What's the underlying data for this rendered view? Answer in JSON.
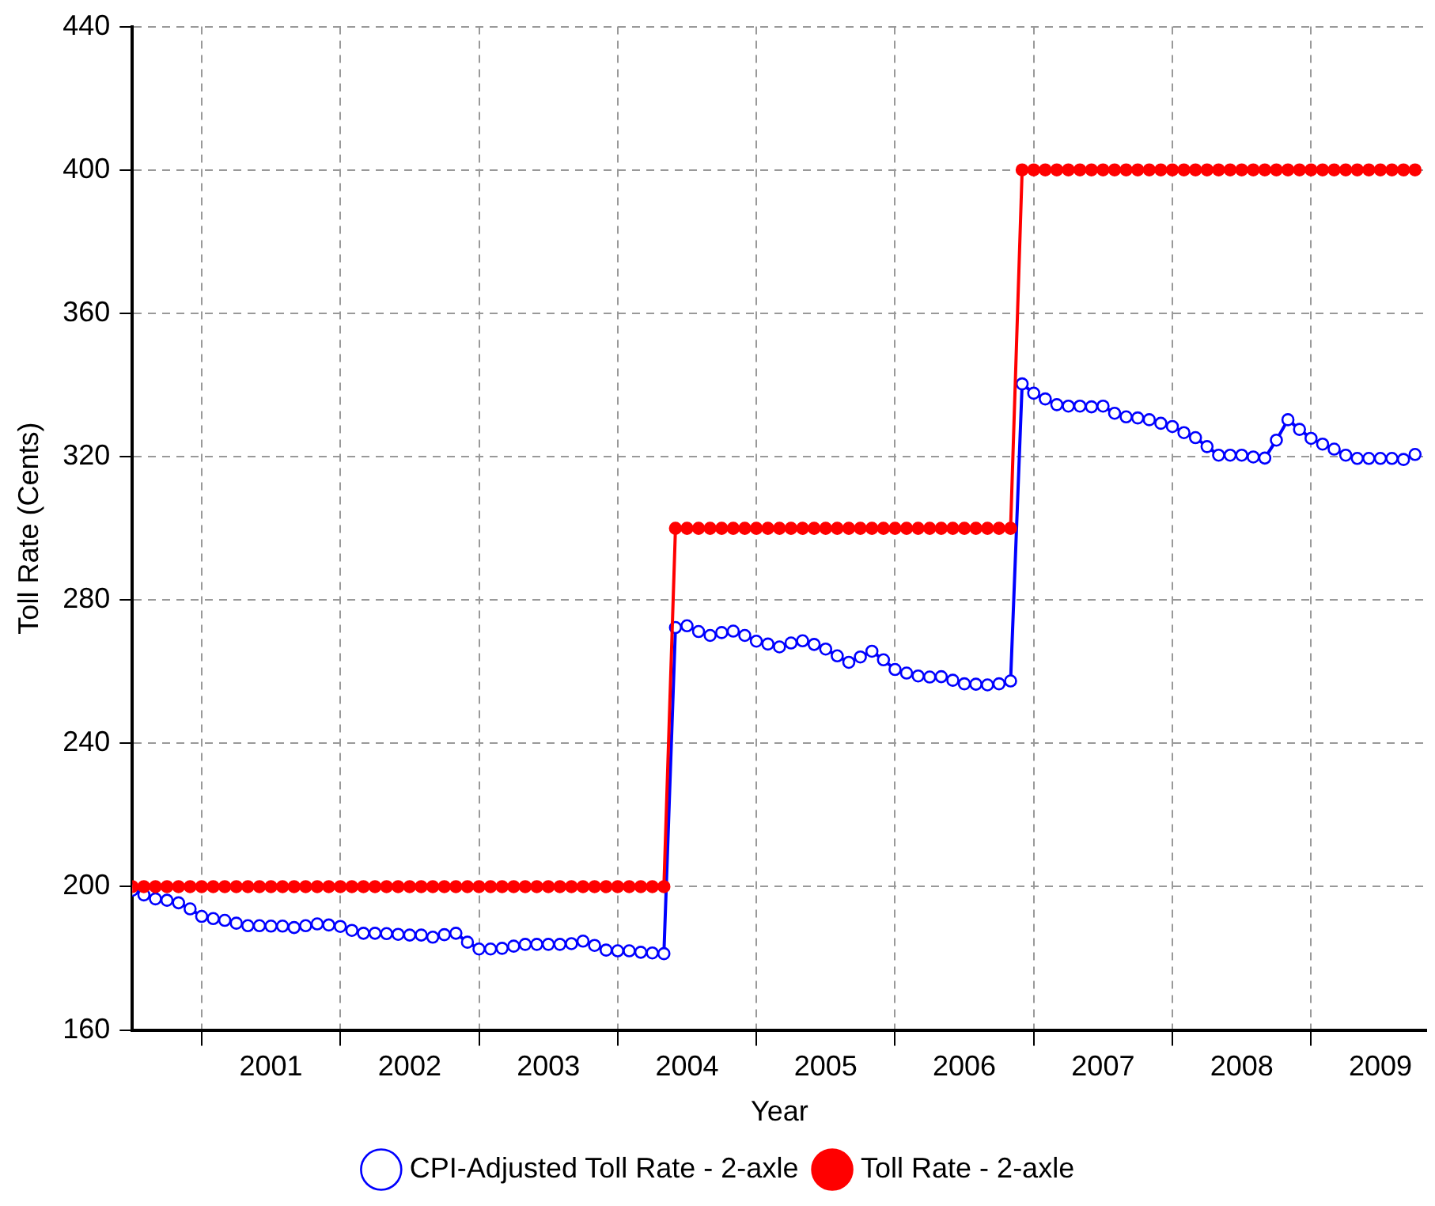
{
  "chart_data": {
    "type": "line",
    "xlabel": "Year",
    "ylabel": "Toll Rate (Cents)",
    "x": [
      "2000-07",
      "2000-08",
      "2000-09",
      "2000-10",
      "2000-11",
      "2000-12",
      "2001-01",
      "2001-02",
      "2001-03",
      "2001-04",
      "2001-05",
      "2001-06",
      "2001-07",
      "2001-08",
      "2001-09",
      "2001-10",
      "2001-11",
      "2001-12",
      "2002-01",
      "2002-02",
      "2002-03",
      "2002-04",
      "2002-05",
      "2002-06",
      "2002-07",
      "2002-08",
      "2002-09",
      "2002-10",
      "2002-11",
      "2002-12",
      "2003-01",
      "2003-02",
      "2003-03",
      "2003-04",
      "2003-05",
      "2003-06",
      "2003-07",
      "2003-08",
      "2003-09",
      "2003-10",
      "2003-11",
      "2003-12",
      "2004-01",
      "2004-02",
      "2004-03",
      "2004-04",
      "2004-05",
      "2004-06",
      "2004-07",
      "2004-08",
      "2004-09",
      "2004-10",
      "2004-11",
      "2004-12",
      "2005-01",
      "2005-02",
      "2005-03",
      "2005-04",
      "2005-05",
      "2005-06",
      "2005-07",
      "2005-08",
      "2005-09",
      "2005-10",
      "2005-11",
      "2005-12",
      "2006-01",
      "2006-02",
      "2006-03",
      "2006-04",
      "2006-05",
      "2006-06",
      "2006-07",
      "2006-08",
      "2006-09",
      "2006-10",
      "2006-11",
      "2006-12",
      "2007-01",
      "2007-02",
      "2007-03",
      "2007-04",
      "2007-05",
      "2007-06",
      "2007-07",
      "2007-08",
      "2007-09",
      "2007-10",
      "2007-11",
      "2007-12",
      "2008-01",
      "2008-02",
      "2008-03",
      "2008-04",
      "2008-05",
      "2008-06",
      "2008-07",
      "2008-08",
      "2008-09",
      "2008-10",
      "2008-11",
      "2008-12",
      "2009-01",
      "2009-02",
      "2009-03",
      "2009-04",
      "2009-05",
      "2009-06",
      "2009-07",
      "2009-08",
      "2009-09",
      "2009-10"
    ],
    "series": [
      {
        "name": "CPI-Adjusted Toll Rate - 2-axle",
        "color": "#0000ff",
        "values": [
          199,
          197.7,
          196.6,
          196.2,
          195.5,
          193.8,
          191.7,
          191.1,
          190.6,
          189.8,
          189.1,
          189.1,
          189,
          189,
          188.6,
          189.1,
          189.6,
          189.3,
          188.9,
          187.8,
          187,
          187,
          186.9,
          186.7,
          186.5,
          186.5,
          185.9,
          186.6,
          187,
          184.5,
          182.6,
          182.6,
          182.8,
          183.4,
          183.9,
          183.9,
          183.9,
          183.9,
          184.1,
          184.8,
          183.6,
          182.3,
          182.1,
          182.1,
          181.7,
          181.5,
          181.3,
          272.3,
          272.8,
          271.2,
          270.1,
          270.9,
          271.3,
          270.1,
          268.5,
          267.7,
          266.9,
          268,
          268.6,
          267.6,
          266.3,
          264.4,
          262.6,
          264.1,
          265.7,
          263.3,
          260.6,
          259.6,
          258.8,
          258.5,
          258.6,
          257.6,
          256.6,
          256.5,
          256.3,
          256.6,
          257.4,
          340.3,
          337.7,
          336.1,
          334.5,
          334.1,
          334.1,
          333.9,
          334.1,
          332.1,
          331.1,
          330.8,
          330.3,
          329.3,
          328.4,
          326.7,
          325.3,
          322.8,
          320.4,
          320.4,
          320.4,
          319.9,
          319.6,
          324.6,
          330.3,
          327.6,
          325.1,
          323.5,
          322.1,
          320.4,
          319.5,
          319.5,
          319.5,
          319.5,
          319.2,
          320.6
        ]
      },
      {
        "name": "Toll Rate - 2-axle",
        "color": "#ff0000",
        "values": [
          200,
          200,
          200,
          200,
          200,
          200,
          200,
          200,
          200,
          200,
          200,
          200,
          200,
          200,
          200,
          200,
          200,
          200,
          200,
          200,
          200,
          200,
          200,
          200,
          200,
          200,
          200,
          200,
          200,
          200,
          200,
          200,
          200,
          200,
          200,
          200,
          200,
          200,
          200,
          200,
          200,
          200,
          200,
          200,
          200,
          200,
          200,
          300,
          300,
          300,
          300,
          300,
          300,
          300,
          300,
          300,
          300,
          300,
          300,
          300,
          300,
          300,
          300,
          300,
          300,
          300,
          300,
          300,
          300,
          300,
          300,
          300,
          300,
          300,
          300,
          300,
          300,
          400,
          400,
          400,
          400,
          400,
          400,
          400,
          400,
          400,
          400,
          400,
          400,
          400,
          400,
          400,
          400,
          400,
          400,
          400,
          400,
          400,
          400,
          400,
          400,
          400,
          400,
          400,
          400,
          400,
          400,
          400,
          400,
          400,
          400,
          400
        ]
      }
    ],
    "xlim": [
      "2000-07",
      "2009-11"
    ],
    "xticks": [
      {
        "value": "2001-01",
        "label": null
      },
      {
        "value": "2002-01",
        "label": null
      },
      {
        "value": "2003-01",
        "label": null
      },
      {
        "value": "2004-01",
        "label": null
      },
      {
        "value": "2005-01",
        "label": null
      },
      {
        "value": "2006-01",
        "label": null
      },
      {
        "value": "2007-01",
        "label": null
      },
      {
        "value": "2008-01",
        "label": null
      },
      {
        "value": "2009-01",
        "label": null
      },
      {
        "value": "2001-07",
        "label": "2001"
      },
      {
        "value": "2002-07",
        "label": "2002"
      },
      {
        "value": "2003-07",
        "label": "2003"
      },
      {
        "value": "2004-07",
        "label": "2004"
      },
      {
        "value": "2005-07",
        "label": "2005"
      },
      {
        "value": "2006-07",
        "label": "2006"
      },
      {
        "value": "2007-07",
        "label": "2007"
      },
      {
        "value": "2008-07",
        "label": "2008"
      },
      {
        "value": "2009-07",
        "label": "2009"
      }
    ],
    "ylim": [
      160,
      440
    ],
    "yticks": [
      160,
      200,
      240,
      280,
      320,
      360,
      400,
      440
    ],
    "grid": true,
    "legend": "bottom",
    "marker": "circle",
    "line_style": "solid"
  }
}
